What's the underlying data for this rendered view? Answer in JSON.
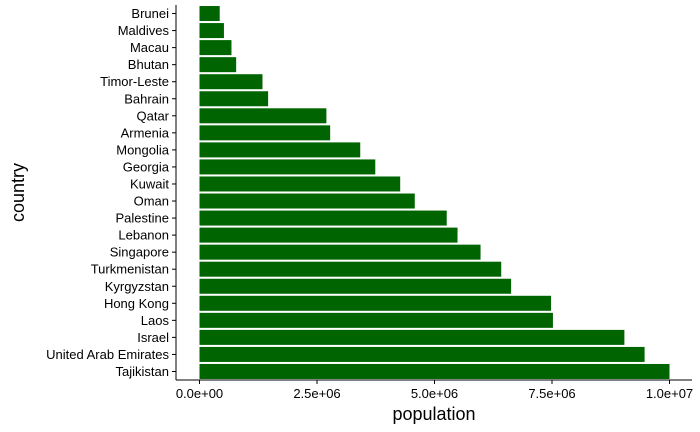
{
  "chart_data": {
    "type": "bar",
    "orientation": "horizontal",
    "title": "",
    "xlabel": "population",
    "ylabel": "country",
    "categories": [
      "Brunei",
      "Maldives",
      "Macau",
      "Bhutan",
      "Timor-Leste",
      "Bahrain",
      "Qatar",
      "Armenia",
      "Mongolia",
      "Georgia",
      "Kuwait",
      "Oman",
      "Palestine",
      "Lebanon",
      "Singapore",
      "Turkmenistan",
      "Kyrgyzstan",
      "Hong Kong",
      "Laos",
      "Israel",
      "United Arab Emirates",
      "Tajikistan"
    ],
    "values": [
      430000,
      520000,
      680000,
      780000,
      1340000,
      1460000,
      2700000,
      2780000,
      3420000,
      3740000,
      4270000,
      4580000,
      5260000,
      5490000,
      5980000,
      6420000,
      6630000,
      7480000,
      7520000,
      9040000,
      9470000,
      10000000
    ],
    "xticks": [
      0,
      2500000,
      5000000,
      7500000,
      10000000
    ],
    "xtick_labels": [
      "0.0e+00",
      "2.5e+06",
      "5.0e+06",
      "7.5e+06",
      "1.0e+07"
    ],
    "xlim": [
      0,
      10000000
    ],
    "bar_color": "#006400",
    "grid": false,
    "legend": "none"
  }
}
